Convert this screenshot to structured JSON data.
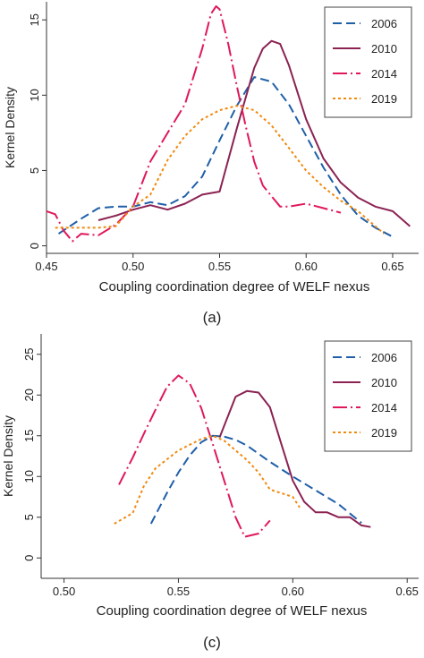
{
  "chart_data": [
    {
      "panel_label": "(a)",
      "type": "line",
      "xlabel": "Coupling coordination degree of WELF nexus",
      "ylabel": "Kernel Density",
      "xlim": [
        0.45,
        0.665
      ],
      "ylim": [
        -0.5,
        16.2
      ],
      "xticks": [
        "0.45",
        "0.50",
        "0.55",
        "0.60",
        "0.65"
      ],
      "xtick_values": [
        0.45,
        0.5,
        0.55,
        0.6,
        0.65
      ],
      "yticks": [
        "0",
        "5",
        "10",
        "15"
      ],
      "ytick_values": [
        0,
        5,
        10,
        15
      ],
      "grid": false,
      "legend_position": "top-right",
      "series": [
        {
          "name": "2006",
          "color": "#1f5fa8",
          "dash": "10,5",
          "points": [
            [
              0.457,
              0.8
            ],
            [
              0.47,
              1.8
            ],
            [
              0.48,
              2.5
            ],
            [
              0.49,
              2.6
            ],
            [
              0.5,
              2.6
            ],
            [
              0.51,
              2.9
            ],
            [
              0.52,
              2.7
            ],
            [
              0.53,
              3.3
            ],
            [
              0.54,
              4.6
            ],
            [
              0.55,
              7.0
            ],
            [
              0.56,
              9.3
            ],
            [
              0.57,
              11.2
            ],
            [
              0.58,
              10.9
            ],
            [
              0.59,
              9.4
            ],
            [
              0.6,
              7.3
            ],
            [
              0.61,
              5.2
            ],
            [
              0.62,
              3.4
            ],
            [
              0.63,
              2.0
            ],
            [
              0.64,
              1.2
            ],
            [
              0.65,
              0.6
            ]
          ]
        },
        {
          "name": "2010",
          "color": "#8b2252",
          "dash": "",
          "points": [
            [
              0.48,
              1.7
            ],
            [
              0.49,
              2.0
            ],
            [
              0.5,
              2.4
            ],
            [
              0.51,
              2.7
            ],
            [
              0.52,
              2.4
            ],
            [
              0.53,
              2.8
            ],
            [
              0.54,
              3.4
            ],
            [
              0.55,
              3.6
            ],
            [
              0.56,
              7.8
            ],
            [
              0.57,
              11.8
            ],
            [
              0.575,
              13.1
            ],
            [
              0.58,
              13.6
            ],
            [
              0.585,
              13.4
            ],
            [
              0.59,
              12.0
            ],
            [
              0.6,
              8.4
            ],
            [
              0.61,
              5.8
            ],
            [
              0.62,
              4.2
            ],
            [
              0.63,
              3.2
            ],
            [
              0.64,
              2.6
            ],
            [
              0.65,
              2.3
            ],
            [
              0.66,
              1.3
            ]
          ]
        },
        {
          "name": "2014",
          "color": "#e0185a",
          "dash": "16,4,2,4",
          "points": [
            [
              0.45,
              2.3
            ],
            [
              0.455,
              2.1
            ],
            [
              0.46,
              1.0
            ],
            [
              0.465,
              0.3
            ],
            [
              0.47,
              0.8
            ],
            [
              0.48,
              0.7
            ],
            [
              0.49,
              1.4
            ],
            [
              0.5,
              2.6
            ],
            [
              0.51,
              5.6
            ],
            [
              0.52,
              7.5
            ],
            [
              0.53,
              9.4
            ],
            [
              0.54,
              13.1
            ],
            [
              0.545,
              15.4
            ],
            [
              0.548,
              15.9
            ],
            [
              0.55,
              15.7
            ],
            [
              0.555,
              13.4
            ],
            [
              0.56,
              10.6
            ],
            [
              0.565,
              8.0
            ],
            [
              0.57,
              5.6
            ],
            [
              0.575,
              4.0
            ],
            [
              0.58,
              3.3
            ],
            [
              0.585,
              2.6
            ],
            [
              0.59,
              2.6
            ],
            [
              0.6,
              2.8
            ],
            [
              0.61,
              2.5
            ],
            [
              0.62,
              2.2
            ]
          ]
        },
        {
          "name": "2019",
          "color": "#f08a0f",
          "dash": "3,3",
          "points": [
            [
              0.455,
              1.2
            ],
            [
              0.47,
              1.2
            ],
            [
              0.48,
              1.2
            ],
            [
              0.49,
              1.3
            ],
            [
              0.5,
              2.6
            ],
            [
              0.51,
              3.4
            ],
            [
              0.52,
              5.7
            ],
            [
              0.53,
              7.3
            ],
            [
              0.54,
              8.4
            ],
            [
              0.55,
              9.0
            ],
            [
              0.56,
              9.3
            ],
            [
              0.57,
              9.0
            ],
            [
              0.58,
              8.0
            ],
            [
              0.59,
              6.5
            ],
            [
              0.6,
              5.0
            ],
            [
              0.61,
              3.9
            ],
            [
              0.62,
              3.0
            ],
            [
              0.63,
              2.3
            ],
            [
              0.64,
              1.3
            ],
            [
              0.645,
              0.8
            ]
          ]
        }
      ]
    },
    {
      "panel_label": "(c)",
      "type": "line",
      "xlabel": "Coupling coordination degree of WELF nexus",
      "ylabel": "Kernel Density",
      "xlim": [
        0.49,
        0.655
      ],
      "ylim": [
        -2.5,
        27.5
      ],
      "xticks": [
        "0.50",
        "0.55",
        "0.60",
        "0.65"
      ],
      "xtick_values": [
        0.5,
        0.55,
        0.6,
        0.65
      ],
      "yticks": [
        "0",
        "5",
        "10",
        "15",
        "20",
        "25"
      ],
      "ytick_values": [
        0,
        5,
        10,
        15,
        20,
        25
      ],
      "grid": false,
      "legend_position": "top-right",
      "series": [
        {
          "name": "2006",
          "color": "#1f5fa8",
          "dash": "10,5",
          "points": [
            [
              0.538,
              4.2
            ],
            [
              0.545,
              8.0
            ],
            [
              0.55,
              10.5
            ],
            [
              0.555,
              12.6
            ],
            [
              0.56,
              14.2
            ],
            [
              0.565,
              15.0
            ],
            [
              0.57,
              14.9
            ],
            [
              0.575,
              14.5
            ],
            [
              0.58,
              13.8
            ],
            [
              0.59,
              11.8
            ],
            [
              0.6,
              10.0
            ],
            [
              0.61,
              8.3
            ],
            [
              0.62,
              6.6
            ],
            [
              0.63,
              4.3
            ]
          ]
        },
        {
          "name": "2010",
          "color": "#8b2252",
          "dash": "",
          "points": [
            [
              0.568,
              14.8
            ],
            [
              0.575,
              19.8
            ],
            [
              0.58,
              20.5
            ],
            [
              0.585,
              20.3
            ],
            [
              0.59,
              18.5
            ],
            [
              0.595,
              14.0
            ],
            [
              0.6,
              9.5
            ],
            [
              0.605,
              6.9
            ],
            [
              0.61,
              5.6
            ],
            [
              0.615,
              5.6
            ],
            [
              0.62,
              5.0
            ],
            [
              0.625,
              5.0
            ],
            [
              0.63,
              4.0
            ],
            [
              0.634,
              3.8
            ]
          ]
        },
        {
          "name": "2014",
          "color": "#e0185a",
          "dash": "16,4,2,4",
          "points": [
            [
              0.524,
              9.0
            ],
            [
              0.53,
              12.3
            ],
            [
              0.535,
              15.3
            ],
            [
              0.54,
              18.2
            ],
            [
              0.545,
              21.0
            ],
            [
              0.55,
              22.4
            ],
            [
              0.555,
              21.4
            ],
            [
              0.56,
              18.4
            ],
            [
              0.565,
              14.0
            ],
            [
              0.57,
              9.5
            ],
            [
              0.575,
              5.0
            ],
            [
              0.579,
              2.6
            ],
            [
              0.585,
              3.0
            ],
            [
              0.59,
              4.6
            ]
          ]
        },
        {
          "name": "2019",
          "color": "#f08a0f",
          "dash": "3,3",
          "points": [
            [
              0.522,
              4.2
            ],
            [
              0.53,
              5.5
            ],
            [
              0.535,
              8.9
            ],
            [
              0.54,
              11.0
            ],
            [
              0.55,
              13.2
            ],
            [
              0.56,
              14.6
            ],
            [
              0.565,
              15.0
            ],
            [
              0.57,
              14.4
            ],
            [
              0.58,
              12.0
            ],
            [
              0.585,
              10.5
            ],
            [
              0.59,
              8.4
            ],
            [
              0.6,
              7.5
            ],
            [
              0.603,
              6.2
            ]
          ]
        }
      ]
    }
  ]
}
